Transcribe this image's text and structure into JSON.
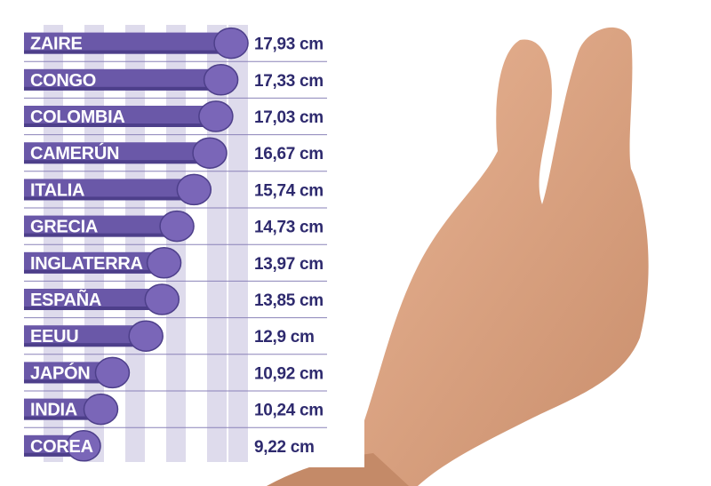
{
  "chart_data": {
    "type": "bar",
    "orientation": "horizontal",
    "unit": "cm",
    "categories": [
      "ZAIRE",
      "CONGO",
      "COLOMBIA",
      "CAMERÚN",
      "ITALIA",
      "GRECIA",
      "INGLATERRA",
      "ESPAÑA",
      "EEUU",
      "JAPÓN",
      "INDIA",
      "COREA"
    ],
    "values": [
      17.93,
      17.33,
      17.03,
      16.67,
      15.74,
      14.73,
      13.97,
      13.85,
      12.9,
      10.92,
      10.24,
      9.22
    ],
    "value_labels": [
      "17,93 cm",
      "17,33 cm",
      "17,03 cm",
      "16,67 cm",
      "15,74 cm",
      "14,73 cm",
      "13,97 cm",
      "13,85 cm",
      "12,9 cm",
      "10,92 cm",
      "10,24 cm",
      "9,22 cm"
    ],
    "title": "",
    "xlabel": "",
    "ylabel": "",
    "grid": true,
    "legend": "none",
    "colors": {
      "bar": "#6a58a8",
      "bar_head": "#7a66b8",
      "value_text": "#2e2a6e",
      "grid_stripe": "#dedbec",
      "row_rule": "#8a82b8"
    }
  }
}
